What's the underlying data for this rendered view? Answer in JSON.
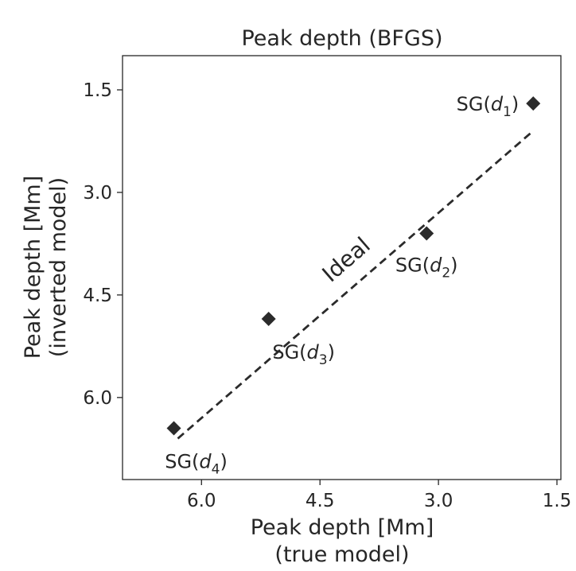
{
  "chart_data": {
    "type": "scatter",
    "title": "Peak depth (BFGS)",
    "xlabel_lines": [
      "Peak depth [Mm]",
      "(true model)"
    ],
    "ylabel_lines": [
      "Peak depth [Mm]",
      "(inverted model)"
    ],
    "xlim": [
      7.0,
      1.45
    ],
    "ylim": [
      1.0,
      7.2
    ],
    "x_ticks": [
      6.0,
      4.5,
      3.0,
      1.5
    ],
    "x_tick_labels": [
      "6.0",
      "4.5",
      "3.0",
      "1.5"
    ],
    "y_ticks": [
      1.5,
      3.0,
      4.5,
      6.0
    ],
    "y_tick_labels": [
      "1.5",
      "3.0",
      "4.5",
      "6.0"
    ],
    "grid": false,
    "x_reversed": true,
    "y_reversed": true,
    "points": [
      {
        "label": "d",
        "sub": "1",
        "x": 1.8,
        "y": 1.7
      },
      {
        "label": "d",
        "sub": "2",
        "x": 3.15,
        "y": 3.6
      },
      {
        "label": "d",
        "sub": "3",
        "x": 5.15,
        "y": 4.85
      },
      {
        "label": "d",
        "sub": "4",
        "x": 6.35,
        "y": 6.45
      }
    ],
    "point_label_prefix": "SG(",
    "point_label_suffix": ")",
    "ideal_line": {
      "label": "Ideal",
      "x": [
        6.3,
        1.8
      ],
      "y": [
        6.6,
        2.1
      ]
    },
    "marker_color": "#2b2b2b",
    "line_color": "#2b2b2b"
  }
}
